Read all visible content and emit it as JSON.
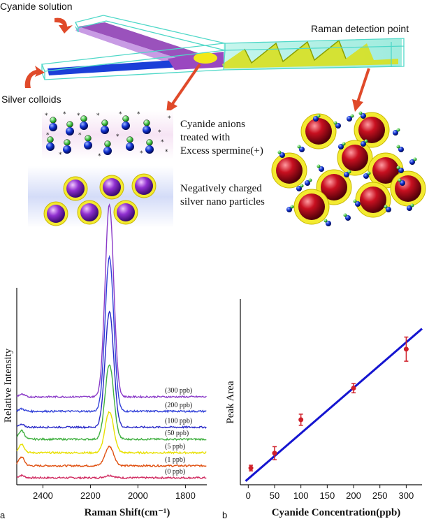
{
  "schematic": {
    "cyanide_solution_label": "Cyanide solution",
    "silver_colloids_label": "Silver colloids",
    "raman_detection_label": "Raman detection point",
    "anions_label_lines": [
      "Cyanide anions",
      "treated with",
      "Excess spermine(+)"
    ],
    "particles_label_lines": [
      "Negatively charged",
      "silver nano particles"
    ]
  },
  "colors": {
    "channel_outline": "#4fd8c8",
    "cyanide_stream": "#8f3fb5",
    "colloid_stream": "#1b3fd8",
    "arrow": "#e04a2a",
    "particle": "#8a2fc8",
    "aggregate_core": "#c0102a",
    "shell": "#f0e020",
    "fit_line": "#1515d0",
    "error_bar": "#d0202a"
  },
  "chart_data": [
    {
      "type": "line",
      "panel_label": "a",
      "xlabel": "Raman Shift(cm⁻¹)",
      "ylabel": "Relative Intensity",
      "xlim": [
        2510,
        1710
      ],
      "x_reversed": true,
      "xticks": [
        2400,
        2200,
        2000,
        1800
      ],
      "peak_center": 2120,
      "series": [
        {
          "name": "(0 ppb)",
          "baseline": 0.0,
          "peak_height": 0.05,
          "color": "#d02a60"
        },
        {
          "name": "(1 ppb)",
          "baseline": 0.25,
          "peak_height": 0.4,
          "color": "#e05010"
        },
        {
          "name": "(5 ppb)",
          "baseline": 0.52,
          "peak_height": 0.85,
          "color": "#e8e000"
        },
        {
          "name": "(50 ppb)",
          "baseline": 0.8,
          "peak_height": 1.55,
          "color": "#40b040"
        },
        {
          "name": "(100 ppb)",
          "baseline": 1.05,
          "peak_height": 2.4,
          "color": "#2828c8"
        },
        {
          "name": "(200 ppb)",
          "baseline": 1.38,
          "peak_height": 3.2,
          "color": "#3040d8"
        },
        {
          "name": "(300 ppb)",
          "baseline": 1.68,
          "peak_height": 4.0,
          "color": "#8a3ac8"
        }
      ]
    },
    {
      "type": "scatter",
      "panel_label": "b",
      "xlabel": "Cyanide Concentration(ppb)",
      "ylabel": "Peak Area",
      "xlim": [
        -15,
        330
      ],
      "ylim": [
        0,
        100
      ],
      "xticks": [
        0,
        50,
        100,
        150,
        200,
        250,
        300
      ],
      "points": [
        {
          "x": 5,
          "y": 9,
          "err": 1.5
        },
        {
          "x": 50,
          "y": 17,
          "err": 3.5
        },
        {
          "x": 100,
          "y": 35,
          "err": 3.0
        },
        {
          "x": 200,
          "y": 52,
          "err": 2.5
        },
        {
          "x": 300,
          "y": 73,
          "err": 6.5
        }
      ],
      "fit": {
        "x": [
          -5,
          330
        ],
        "y": [
          2,
          84
        ]
      }
    }
  ]
}
